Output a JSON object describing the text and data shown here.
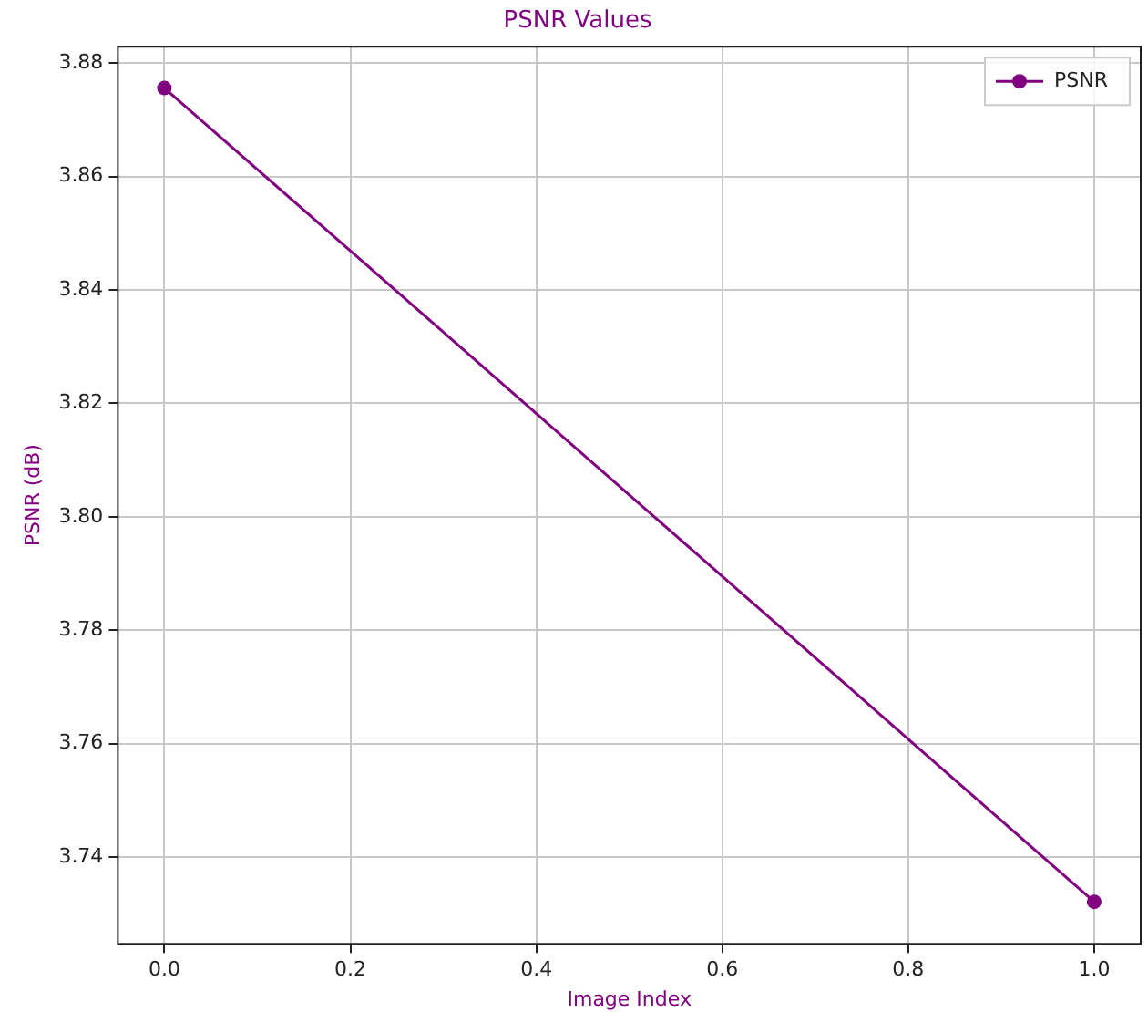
{
  "chart_data": {
    "type": "line",
    "title": "PSNR Values",
    "xlabel": "Image Index",
    "ylabel": "PSNR (dB)",
    "x": [
      0,
      1
    ],
    "series": [
      {
        "name": "PSNR",
        "color": "#800080",
        "values": [
          3.8756,
          3.7321
        ]
      }
    ],
    "xlim": [
      -0.05,
      1.05
    ],
    "xticks": [
      {
        "value": 0,
        "label": "0.0"
      },
      {
        "value": 0.2,
        "label": "0.2"
      },
      {
        "value": 0.4,
        "label": "0.4"
      },
      {
        "value": 0.6,
        "label": "0.6"
      },
      {
        "value": 0.8,
        "label": "0.8"
      },
      {
        "value": 1,
        "label": "1.0"
      }
    ],
    "ylim": [
      3.7247,
      3.8829
    ],
    "yticks": [
      {
        "value": 3.74,
        "label": "3.74"
      },
      {
        "value": 3.76,
        "label": "3.76"
      },
      {
        "value": 3.78,
        "label": "3.78"
      },
      {
        "value": 3.8,
        "label": "3.80"
      },
      {
        "value": 3.82,
        "label": "3.82"
      },
      {
        "value": 3.84,
        "label": "3.84"
      },
      {
        "value": 3.86,
        "label": "3.86"
      },
      {
        "value": 3.88,
        "label": "3.88"
      }
    ],
    "grid": true,
    "legend": "top right",
    "marker": "circle",
    "line_style": "solid"
  }
}
